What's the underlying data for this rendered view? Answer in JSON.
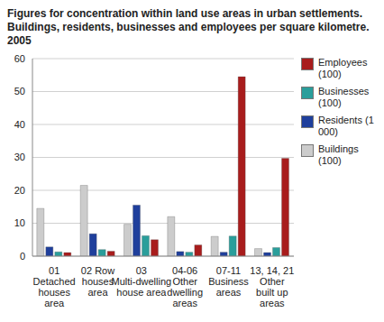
{
  "chart_data": {
    "type": "bar",
    "title": "Figures for concentration within land use areas in urban settlements. Buildings, residents, businesses and employees per square kilometre. 2005",
    "categories": [
      "01 Detached houses area",
      "02 Row houses area",
      "03 Multi-dwelling house area",
      "04-06 Other dwelling areas",
      "07-11 Business areas",
      "13, 14, 21 Other built up areas"
    ],
    "series": [
      {
        "name": "Buildings (100)",
        "color": "#cccccc",
        "values": [
          14.5,
          21.5,
          9.7,
          12,
          6,
          2.3
        ]
      },
      {
        "name": "Residents (1 000)",
        "color": "#1f3f9c",
        "values": [
          2.8,
          6.8,
          15.5,
          1.4,
          1.2,
          1.1
        ]
      },
      {
        "name": "Businesses (100)",
        "color": "#2a9e9b",
        "values": [
          1.3,
          2.0,
          6.2,
          1.2,
          6.1,
          2.6
        ]
      },
      {
        "name": "Employees (100)",
        "color": "#a81c1c",
        "values": [
          1.1,
          1.5,
          5.0,
          3.4,
          54.5,
          29.7
        ]
      }
    ],
    "ylim": [
      0,
      60
    ],
    "yticks": [
      0,
      10,
      20,
      30,
      40,
      50,
      60
    ],
    "grid": true,
    "legend": "right"
  }
}
